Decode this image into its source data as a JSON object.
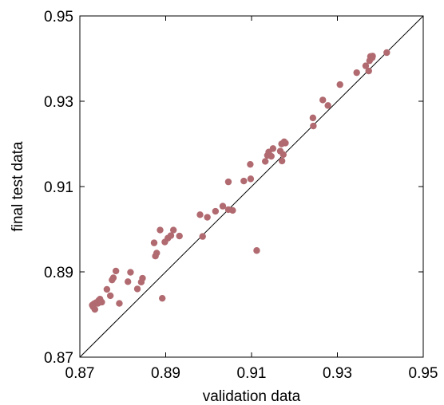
{
  "chart_data": {
    "type": "scatter",
    "xlabel": "validation data",
    "ylabel": "final test data",
    "xlim": [
      0.87,
      0.95
    ],
    "ylim": [
      0.87,
      0.95
    ],
    "xticks": [
      "0.87",
      "0.89",
      "0.91",
      "0.93",
      "0.95"
    ],
    "yticks": [
      "0.87",
      "0.89",
      "0.91",
      "0.93",
      "0.95"
    ],
    "grid": false,
    "reference_line": "y = x",
    "marker_color": "#b06a70",
    "series": [
      {
        "points": [
          [
            0.8729,
            0.8822
          ],
          [
            0.8731,
            0.8818
          ],
          [
            0.8733,
            0.8825
          ],
          [
            0.8735,
            0.8812
          ],
          [
            0.8738,
            0.8828
          ],
          [
            0.8742,
            0.8826
          ],
          [
            0.8744,
            0.8833
          ],
          [
            0.8747,
            0.8836
          ],
          [
            0.8751,
            0.8829
          ],
          [
            0.8763,
            0.8859
          ],
          [
            0.8771,
            0.8844
          ],
          [
            0.8775,
            0.8881
          ],
          [
            0.8778,
            0.8886
          ],
          [
            0.8784,
            0.8902
          ],
          [
            0.8792,
            0.8826
          ],
          [
            0.8812,
            0.8877
          ],
          [
            0.8818,
            0.8899
          ],
          [
            0.8834,
            0.886
          ],
          [
            0.8843,
            0.8876
          ],
          [
            0.8846,
            0.8885
          ],
          [
            0.8873,
            0.8968
          ],
          [
            0.8876,
            0.8937
          ],
          [
            0.8879,
            0.8944
          ],
          [
            0.8887,
            0.8998
          ],
          [
            0.8892,
            0.8838
          ],
          [
            0.8898,
            0.897
          ],
          [
            0.8905,
            0.8979
          ],
          [
            0.8912,
            0.8985
          ],
          [
            0.8918,
            0.8998
          ],
          [
            0.8932,
            0.8984
          ],
          [
            0.898,
            0.9034
          ],
          [
            0.8986,
            0.8983
          ],
          [
            0.8997,
            0.9028
          ],
          [
            0.9016,
            0.9042
          ],
          [
            0.9033,
            0.9054
          ],
          [
            0.9046,
            0.9111
          ],
          [
            0.9046,
            0.9046
          ],
          [
            0.9056,
            0.9044
          ],
          [
            0.9082,
            0.9113
          ],
          [
            0.9097,
            0.9152
          ],
          [
            0.9098,
            0.9118
          ],
          [
            0.9112,
            0.895
          ],
          [
            0.9132,
            0.9159
          ],
          [
            0.9137,
            0.9173
          ],
          [
            0.914,
            0.9181
          ],
          [
            0.9146,
            0.9171
          ],
          [
            0.915,
            0.9189
          ],
          [
            0.9167,
            0.9183
          ],
          [
            0.917,
            0.92
          ],
          [
            0.9171,
            0.916
          ],
          [
            0.9174,
            0.9175
          ],
          [
            0.9176,
            0.9205
          ],
          [
            0.9179,
            0.9202
          ],
          [
            0.9243,
            0.9261
          ],
          [
            0.9244,
            0.9242
          ],
          [
            0.9266,
            0.9303
          ],
          [
            0.9278,
            0.929
          ],
          [
            0.9306,
            0.9339
          ],
          [
            0.9345,
            0.9367
          ],
          [
            0.9366,
            0.9383
          ],
          [
            0.9373,
            0.9371
          ],
          [
            0.9375,
            0.9395
          ],
          [
            0.9377,
            0.9405
          ],
          [
            0.9381,
            0.9402
          ],
          [
            0.9382,
            0.9406
          ],
          [
            0.9415,
            0.9414
          ]
        ]
      }
    ]
  }
}
